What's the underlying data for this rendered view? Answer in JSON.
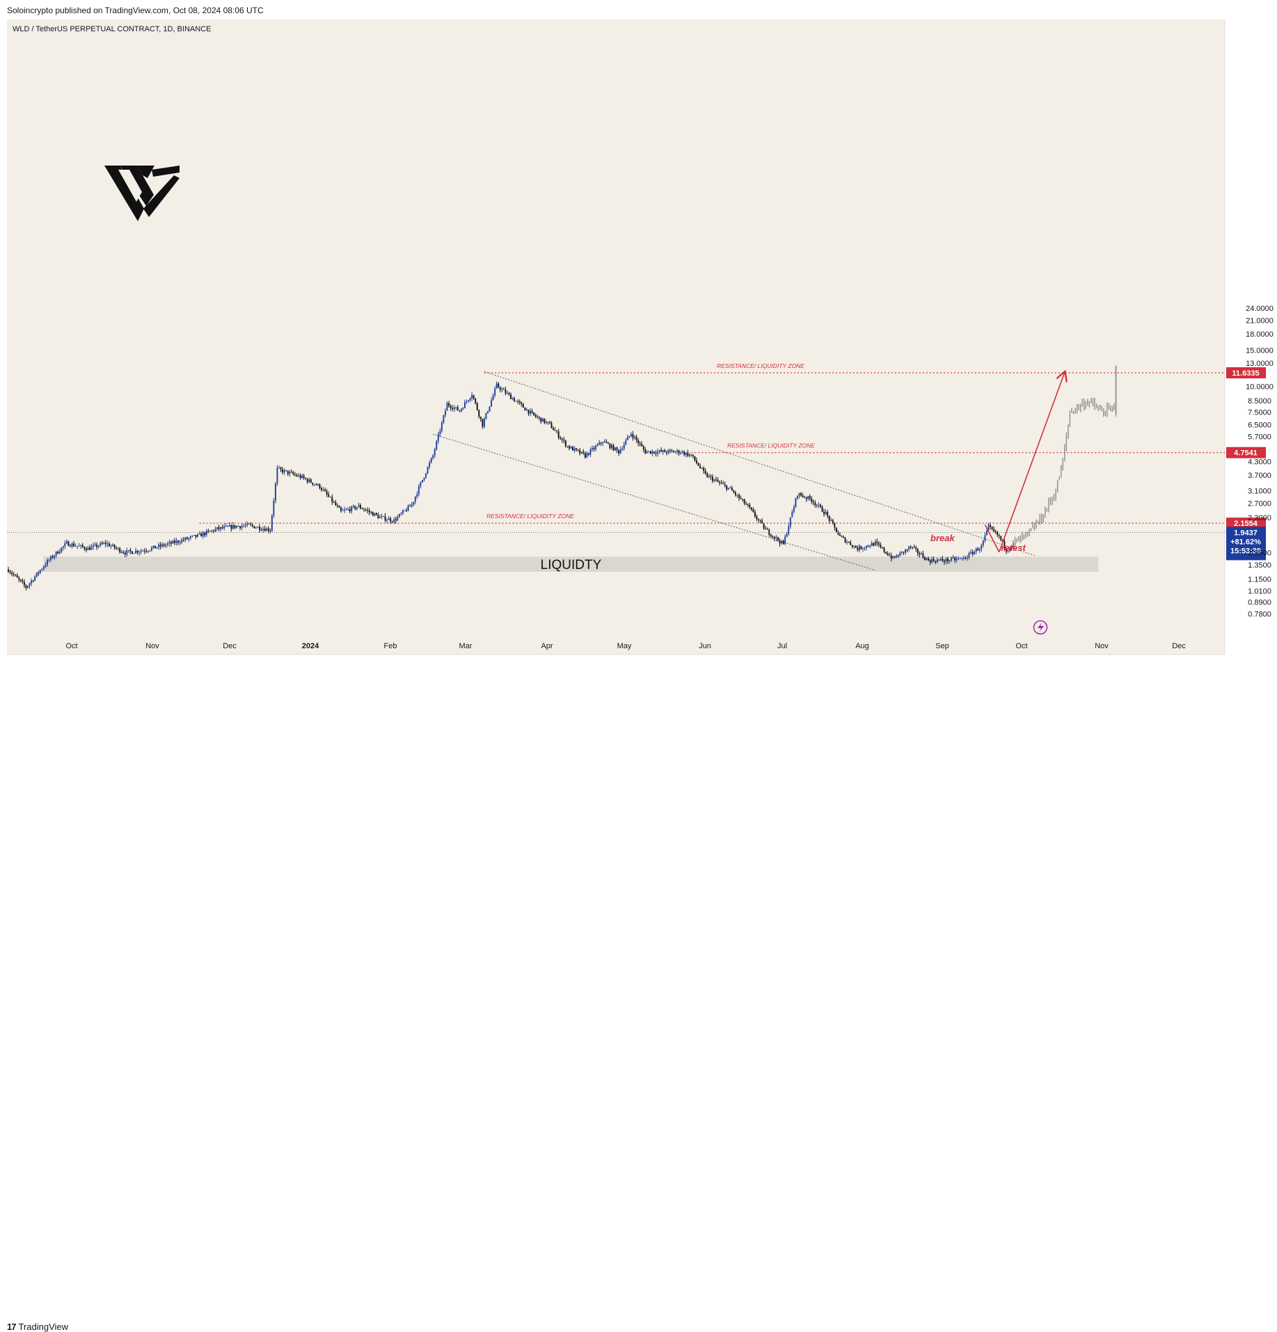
{
  "header": {
    "publisher": "Soloincrypto published on TradingView.com, Oct 08, 2024 08:06 UTC"
  },
  "footer": {
    "brand": "TradingView",
    "brand_icon": "tradingview-logo-icon"
  },
  "colors": {
    "background": "#f3efe6",
    "up_candle": "#1c3d9e",
    "down_candle": "#111111",
    "projection": "#8d8d8d",
    "resistance": "#d32f3c",
    "liquidity_zone": "#d6d4cd",
    "price_badge": "#1c3d9e"
  },
  "chart_data": {
    "type": "candlestick",
    "title": "WLD / TetherUS PERPETUAL CONTRACT, 1D, BINANCE",
    "y_scale": "log",
    "ylim": [
      0.7,
      25
    ],
    "y_ticks": [
      "24.0000",
      "21.0000",
      "18.0000",
      "15.0000",
      "13.0000",
      "10.0000",
      "8.5000",
      "7.5000",
      "6.5000",
      "5.7000",
      "4.3000",
      "3.7000",
      "3.1000",
      "2.7000",
      "2.3000",
      "1.5500",
      "1.3500",
      "1.1500",
      "1.0100",
      "0.8900",
      "0.7800"
    ],
    "x_ticks": [
      "Oct",
      "Nov",
      "Dec",
      "2024",
      "Feb",
      "Mar",
      "Apr",
      "May",
      "Jun",
      "Jul",
      "Aug",
      "Sep",
      "Oct",
      "Nov",
      "Dec"
    ],
    "series": [
      {
        "style": "candles",
        "points": [
          [
            0,
            1.28
          ],
          [
            10,
            1.05
          ],
          [
            22,
            1.4
          ],
          [
            33,
            1.72
          ],
          [
            45,
            1.62
          ],
          [
            55,
            1.72
          ],
          [
            66,
            1.55
          ],
          [
            78,
            1.6
          ],
          [
            92,
            1.72
          ],
          [
            108,
            1.88
          ],
          [
            118,
            2.02
          ],
          [
            128,
            2.08
          ],
          [
            136,
            2.1
          ],
          [
            148,
            2.0
          ],
          [
            152,
            3.95
          ],
          [
            166,
            3.6
          ],
          [
            176,
            3.25
          ],
          [
            188,
            2.45
          ],
          [
            198,
            2.6
          ],
          [
            210,
            2.3
          ],
          [
            218,
            2.22
          ],
          [
            228,
            2.65
          ],
          [
            232,
            3.2
          ],
          [
            240,
            4.6
          ],
          [
            248,
            8.2
          ],
          [
            255,
            7.6
          ],
          [
            262,
            9.2
          ],
          [
            268,
            6.5
          ],
          [
            276,
            10.1
          ],
          [
            286,
            8.6
          ],
          [
            296,
            7.3
          ],
          [
            306,
            6.5
          ],
          [
            316,
            5.1
          ],
          [
            326,
            4.6
          ],
          [
            336,
            5.4
          ],
          [
            345,
            4.8
          ],
          [
            352,
            5.9
          ],
          [
            360,
            4.8
          ],
          [
            370,
            4.8
          ],
          [
            380,
            4.8
          ],
          [
            386,
            4.6
          ],
          [
            394,
            3.7
          ],
          [
            408,
            3.15
          ],
          [
            418,
            2.6
          ],
          [
            428,
            2.0
          ],
          [
            438,
            1.7
          ],
          [
            446,
            3.0
          ],
          [
            454,
            2.8
          ],
          [
            462,
            2.4
          ],
          [
            470,
            1.85
          ],
          [
            480,
            1.62
          ],
          [
            490,
            1.72
          ],
          [
            500,
            1.45
          ],
          [
            510,
            1.65
          ],
          [
            520,
            1.42
          ],
          [
            530,
            1.42
          ],
          [
            540,
            1.45
          ],
          [
            550,
            1.66
          ],
          [
            554,
            2.06
          ],
          [
            560,
            1.85
          ],
          [
            564,
            1.6
          ],
          [
            568,
            1.7
          ]
        ]
      },
      {
        "style": "projection",
        "points": [
          [
            568,
            1.72
          ],
          [
            576,
            1.88
          ],
          [
            584,
            2.3
          ],
          [
            592,
            3.1
          ],
          [
            596,
            4.3
          ],
          [
            600,
            7.5
          ],
          [
            610,
            8.5
          ],
          [
            618,
            7.5
          ],
          [
            626,
            7.8
          ]
        ]
      }
    ],
    "x_day_range": [
      0,
      660
    ],
    "annotations": [
      {
        "type": "hline",
        "label": "RESISTANCE/ LIQUIDITY ZONE",
        "y": 11.6335,
        "badge": "11.6335",
        "x_start": 269
      },
      {
        "type": "hline",
        "label": "RESISTANCE/ LIQUIDITY ZONE",
        "y": 4.7541,
        "badge": "4.7541",
        "x_start": 386
      },
      {
        "type": "hline",
        "label": "RESISTANCE/ LIQUIDITY ZONE",
        "y": 2.1554,
        "badge": "2.1554",
        "x_start": 108
      },
      {
        "type": "zone",
        "label": "LIQUIDTY",
        "y_low": 1.25,
        "y_high": 1.48,
        "x_start": 20,
        "x_end": 616
      },
      {
        "type": "text",
        "label": "break",
        "x": 528,
        "y": 1.76
      },
      {
        "type": "text",
        "label": "retest",
        "x": 568,
        "y": 1.58
      },
      {
        "type": "last_price",
        "price": "1.9437",
        "change": "+81.62%",
        "countdown": "15:53:39",
        "y": 1.9437
      }
    ],
    "trendlines": [
      {
        "from": [
          269,
          11.8
        ],
        "to": [
          580,
          1.5
        ]
      },
      {
        "from": [
          240,
          5.85
        ],
        "to": [
          490,
          1.27
        ]
      }
    ],
    "arrows": [
      {
        "from": [
          552,
          2.12
        ],
        "to": [
          560,
          1.56
        ]
      },
      {
        "from": [
          560,
          1.56
        ],
        "to": [
          597,
          11.7
        ]
      }
    ]
  }
}
